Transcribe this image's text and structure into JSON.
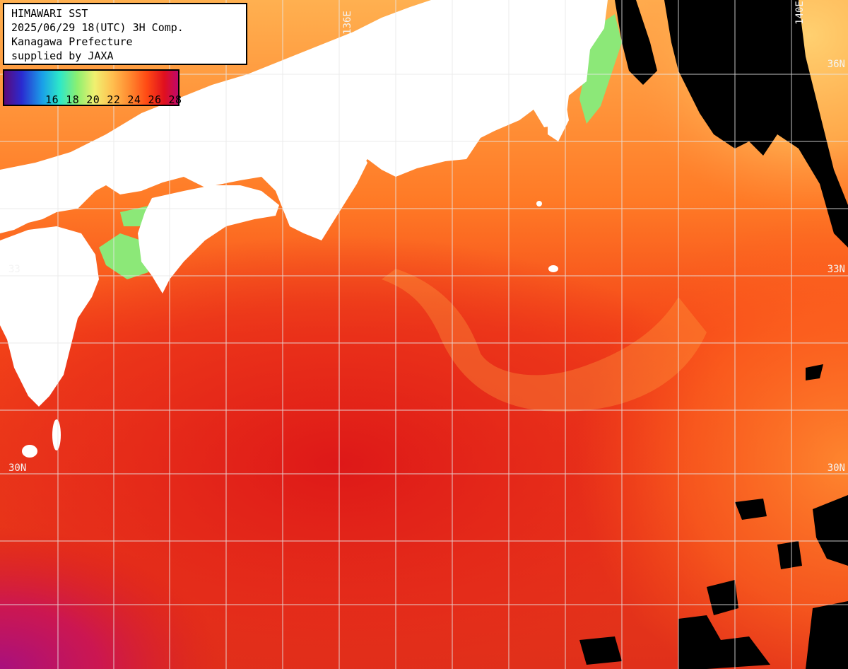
{
  "info": {
    "line1": "HIMAWARI SST",
    "line2": "2025/06/29 18(UTC) 3H Comp.",
    "line3": "Kanagawa Prefecture",
    "line4": "supplied by JAXA"
  },
  "legend": {
    "values": [
      "16",
      "18",
      "20",
      "22",
      "24",
      "26",
      "28"
    ],
    "colors": {
      "cold": "#5a0a7a",
      "cool": "#1aa0e8",
      "mild": "#8cf070",
      "warm": "#ffc050",
      "hot": "#ff4a14",
      "very_hot": "#c0086a"
    }
  },
  "grid_labels": {
    "lon_136": "136E",
    "lon_140": "140E",
    "lat_36_right": "36N",
    "lat_33_left": "33",
    "lat_33_right": "33N",
    "lat_30_left": "30N",
    "lat_30_right": "30N"
  },
  "palette": {
    "land": "#ffffff",
    "cloud": "#000000",
    "grid": "#e8e8e8"
  }
}
